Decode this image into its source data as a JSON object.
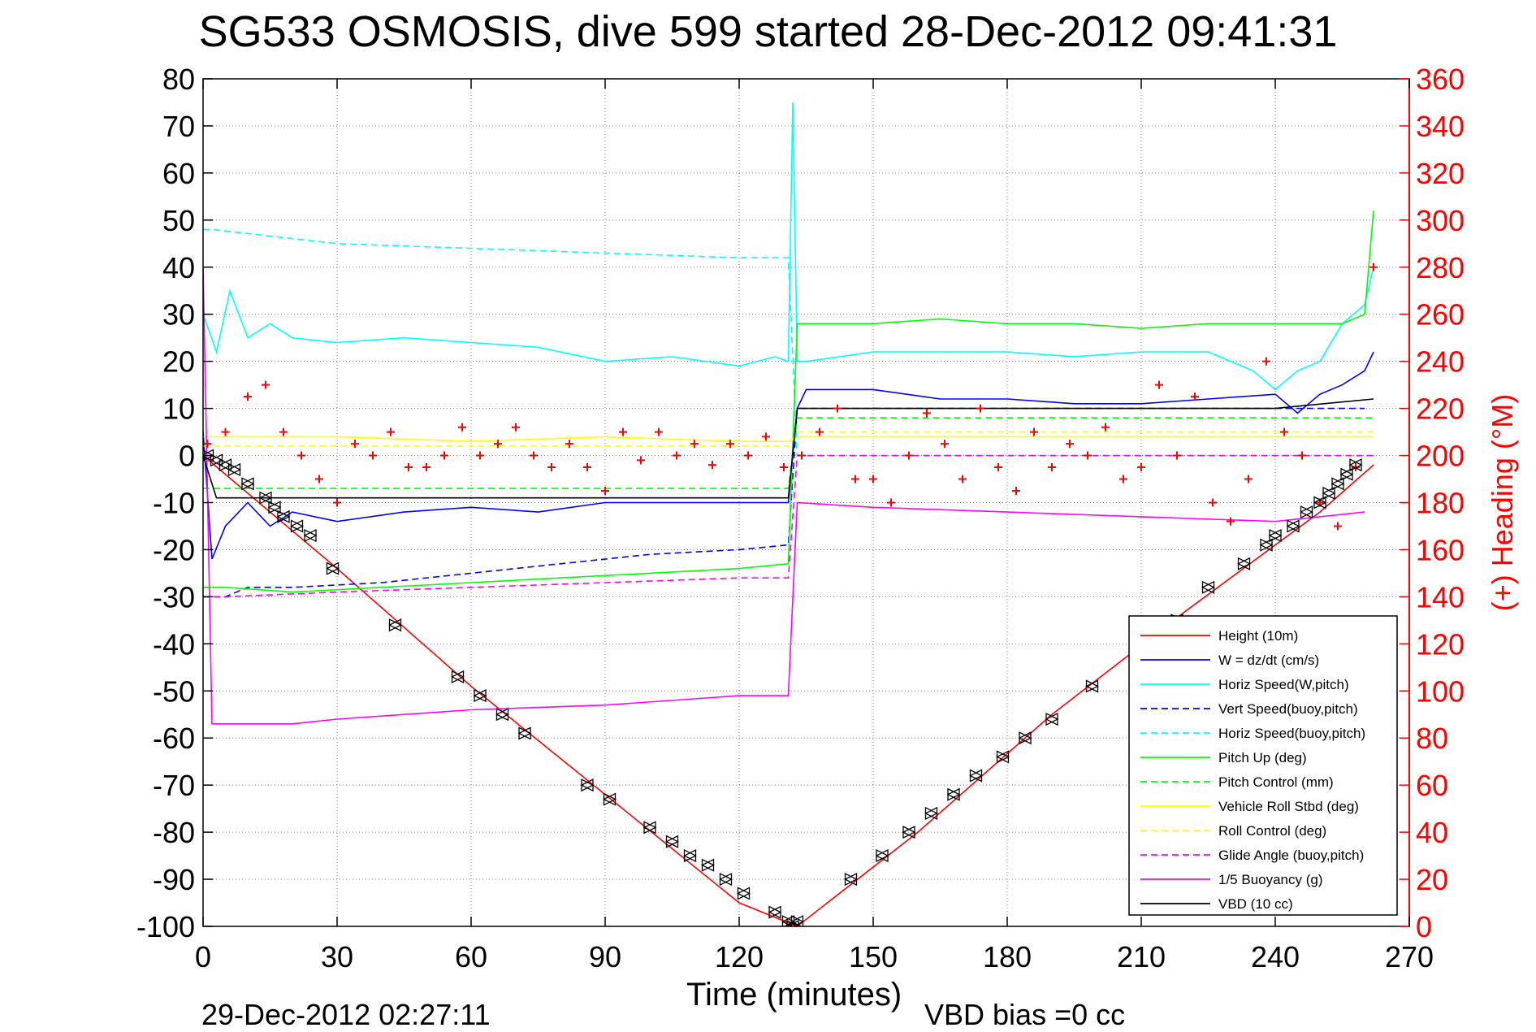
{
  "title": "SG533 OSMOSIS, dive 599 started 28-Dec-2012 09:41:31",
  "footer": {
    "timestamp": "29-Dec-2012 02:27:11",
    "vbd_bias": "VBD bias =0 cc"
  },
  "chart_data": {
    "type": "line",
    "title": "SG533 OSMOSIS, dive 599 started 28-Dec-2012 09:41:31",
    "xlabel": "Time (minutes)",
    "ylabel": "",
    "y2label": "(+) Heading (°M)",
    "xlim": [
      0,
      270
    ],
    "ylim": [
      -100,
      80
    ],
    "y2lim": [
      0,
      360
    ],
    "xticks": [
      "0",
      "30",
      "60",
      "90",
      "120",
      "150",
      "180",
      "210",
      "240",
      "270"
    ],
    "yticks": [
      "80",
      "70",
      "60",
      "50",
      "40",
      "30",
      "20",
      "10",
      "0",
      "-10",
      "-20",
      "-30",
      "-40",
      "-50",
      "-60",
      "-70",
      "-80",
      "-90",
      "-100"
    ],
    "y2ticks": [
      "360",
      "340",
      "320",
      "300",
      "280",
      "260",
      "240",
      "220",
      "200",
      "180",
      "160",
      "140",
      "120",
      "100",
      "80",
      "60",
      "40",
      "20",
      "0"
    ],
    "grid": true,
    "legend_position": "bottom-right",
    "colors": {
      "height": "#ff0000",
      "w": "#0000ff",
      "cyan": "#00ffff",
      "green": "#00ff00",
      "yellow": "#ffff00",
      "magenta": "#ff00ff",
      "black": "#000000",
      "heading": "#ff0000"
    },
    "series": [
      {
        "name": "Height (10m)",
        "color": "#ff0000",
        "style": "solid",
        "x": [
          0,
          30,
          60,
          90,
          120,
          133,
          160,
          190,
          220,
          250,
          262
        ],
        "y": [
          0,
          -24,
          -49,
          -72,
          -95,
          -100,
          -80,
          -55,
          -33,
          -12,
          -2
        ]
      },
      {
        "name": "W = dz/dt (cm/s)",
        "color": "#0000ff",
        "style": "solid",
        "x": [
          0,
          2,
          5,
          10,
          15,
          20,
          30,
          45,
          60,
          75,
          90,
          105,
          120,
          131,
          133,
          135,
          150,
          165,
          180,
          195,
          210,
          225,
          240,
          245,
          250,
          255,
          260,
          262
        ],
        "y": [
          5,
          -22,
          -15,
          -10,
          -15,
          -12,
          -14,
          -12,
          -11,
          -12,
          -10,
          -10,
          -10,
          -10,
          10,
          14,
          14,
          12,
          12,
          11,
          11,
          12,
          13,
          9,
          13,
          15,
          18,
          22
        ]
      },
      {
        "name": "Horiz Speed(W,pitch)",
        "color": "#00ffff",
        "style": "solid",
        "x": [
          0,
          3,
          6,
          10,
          15,
          20,
          30,
          45,
          60,
          75,
          90,
          105,
          120,
          128,
          131,
          132,
          133,
          135,
          150,
          165,
          180,
          195,
          210,
          225,
          235,
          240,
          245,
          250,
          255,
          260,
          262
        ],
        "y": [
          30,
          22,
          35,
          25,
          28,
          25,
          24,
          25,
          24,
          23,
          20,
          21,
          19,
          21,
          20,
          75,
          20,
          20,
          22,
          22,
          22,
          21,
          22,
          22,
          18,
          14,
          18,
          20,
          28,
          32,
          40
        ]
      },
      {
        "name": "Vert Speed(buoy,pitch)",
        "color": "#0000ff",
        "style": "dashed",
        "x": [
          0,
          5,
          10,
          20,
          40,
          60,
          80,
          100,
          120,
          131,
          133,
          260
        ],
        "y": [
          -30,
          -30,
          -28,
          -28,
          -27,
          -25,
          -23,
          -21,
          -20,
          -19,
          10,
          10
        ]
      },
      {
        "name": "Horiz Speed(buoy,pitch)",
        "color": "#00ffff",
        "style": "dashed",
        "x": [
          0,
          2,
          30,
          60,
          90,
          120,
          131,
          133
        ],
        "y": [
          48,
          48,
          45,
          44,
          43,
          42,
          42,
          0
        ]
      },
      {
        "name": "Pitch Up (deg)",
        "color": "#00ff00",
        "style": "solid",
        "x": [
          0,
          5,
          20,
          40,
          60,
          80,
          100,
          120,
          131,
          133,
          135,
          150,
          165,
          180,
          195,
          210,
          225,
          240,
          255,
          260,
          262
        ],
        "y": [
          -28,
          -28,
          -29,
          -28,
          -27,
          -26,
          -25,
          -24,
          -23,
          28,
          28,
          28,
          29,
          28,
          28,
          27,
          28,
          28,
          28,
          30,
          52
        ]
      },
      {
        "name": "Pitch Control (mm)",
        "color": "#00ff00",
        "style": "dashed",
        "x": [
          0,
          131,
          133,
          262
        ],
        "y": [
          -7,
          -7,
          8,
          8
        ]
      },
      {
        "name": "Vehicle Roll Stbd (deg)",
        "color": "#ffff00",
        "style": "solid",
        "x": [
          0,
          30,
          60,
          90,
          120,
          131,
          133,
          160,
          190,
          220,
          262
        ],
        "y": [
          4,
          4,
          3,
          4,
          3,
          3,
          4,
          4,
          4,
          4,
          4
        ]
      },
      {
        "name": "Roll Control (deg)",
        "color": "#ffff00",
        "style": "dashed",
        "x": [
          0,
          131,
          133,
          262
        ],
        "y": [
          2,
          2,
          5,
          5
        ]
      },
      {
        "name": "Glide Angle (buoy,pitch)",
        "color": "#ff00ff",
        "style": "dashed",
        "x": [
          0,
          5,
          30,
          60,
          90,
          120,
          131,
          133,
          262
        ],
        "y": [
          -30,
          -30,
          -29,
          -28,
          -27,
          -26,
          -26,
          0,
          0
        ]
      },
      {
        "name": "1/5 Buoyancy (g)",
        "color": "#ff00ff",
        "style": "solid",
        "x": [
          0,
          2,
          10,
          20,
          30,
          60,
          90,
          120,
          131,
          133,
          150,
          180,
          210,
          240,
          260
        ],
        "y": [
          40,
          -57,
          -57,
          -57,
          -56,
          -54,
          -53,
          -51,
          -51,
          -10,
          -11,
          -12,
          -13,
          -14,
          -12
        ]
      },
      {
        "name": "VBD (10 cc)",
        "color": "#000000",
        "style": "solid",
        "x": [
          0,
          3,
          30,
          60,
          90,
          120,
          131,
          133,
          150,
          180,
          210,
          240,
          262
        ],
        "y": [
          0,
          -9,
          -9,
          -9,
          -9,
          -9,
          -9,
          10,
          10,
          10,
          10,
          10,
          12
        ]
      }
    ],
    "heading_series": {
      "name": "(+) Heading (°M)",
      "color": "#ff0000",
      "axis": "right",
      "marker": "+",
      "x": [
        1,
        5,
        10,
        14,
        18,
        22,
        26,
        30,
        34,
        38,
        42,
        46,
        50,
        54,
        58,
        62,
        66,
        70,
        74,
        78,
        82,
        86,
        90,
        94,
        98,
        102,
        106,
        110,
        114,
        118,
        122,
        126,
        130,
        134,
        138,
        142,
        146,
        150,
        154,
        158,
        162,
        166,
        170,
        174,
        178,
        182,
        186,
        190,
        194,
        198,
        202,
        206,
        210,
        214,
        218,
        222,
        226,
        230,
        234,
        238,
        242,
        246,
        250,
        254,
        258,
        262
      ],
      "y": [
        205,
        210,
        225,
        230,
        210,
        200,
        190,
        180,
        205,
        200,
        210,
        195,
        195,
        200,
        212,
        200,
        205,
        212,
        200,
        195,
        205,
        195,
        185,
        210,
        198,
        210,
        200,
        205,
        196,
        205,
        200,
        208,
        195,
        200,
        210,
        220,
        190,
        190,
        180,
        200,
        218,
        205,
        190,
        220,
        195,
        185,
        210,
        195,
        205,
        200,
        212,
        190,
        195,
        230,
        200,
        225,
        180,
        172,
        190,
        240,
        210,
        200,
        180,
        170,
        195,
        280
      ]
    },
    "marker_series": {
      "name": "depth markers",
      "color": "#000000",
      "marker": "triangle",
      "x": [
        1,
        3,
        5,
        7,
        10,
        14,
        16,
        18,
        21,
        24,
        29,
        43,
        57,
        62,
        67,
        72,
        86,
        91,
        100,
        105,
        109,
        113,
        117,
        121,
        128,
        131,
        132,
        133,
        145,
        152,
        158,
        163,
        168,
        173,
        179,
        184,
        190,
        199,
        218,
        225,
        233,
        238,
        240,
        244,
        247,
        250,
        252,
        254,
        256,
        258
      ],
      "y": [
        0,
        -1,
        -2,
        -3,
        -6,
        -9,
        -11,
        -13,
        -15,
        -17,
        -24,
        -36,
        -47,
        -51,
        -55,
        -59,
        -70,
        -73,
        -79,
        -82,
        -85,
        -87,
        -90,
        -93,
        -97,
        -99,
        -100,
        -99,
        -90,
        -85,
        -80,
        -76,
        -72,
        -68,
        -64,
        -60,
        -56,
        -49,
        -35,
        -28,
        -23,
        -19,
        -17,
        -15,
        -12,
        -10,
        -8,
        -6,
        -4,
        -2
      ]
    }
  }
}
